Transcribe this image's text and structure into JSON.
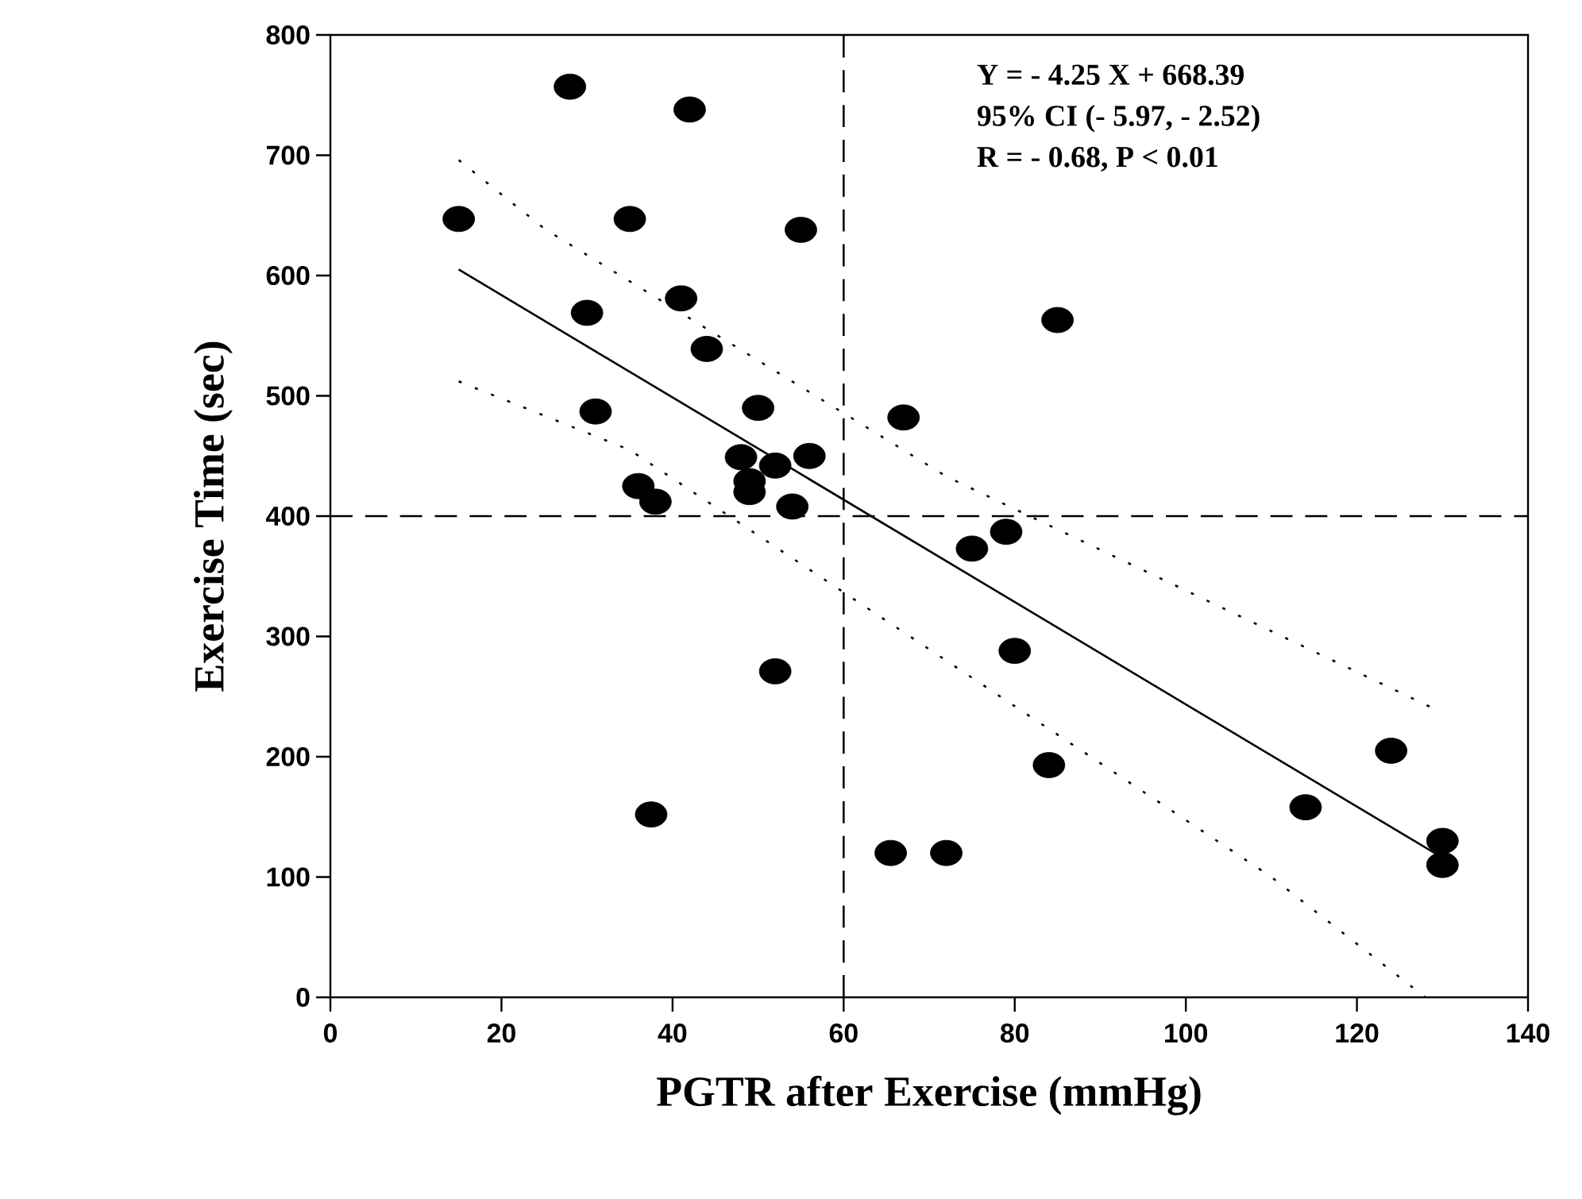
{
  "chart_data": {
    "type": "scatter",
    "xlabel": "PGTR after Exercise (mmHg)",
    "ylabel": "Exercise Time (sec)",
    "xlim": [
      0,
      140
    ],
    "ylim": [
      0,
      800
    ],
    "xticks": [
      0,
      20,
      40,
      60,
      80,
      100,
      120,
      140
    ],
    "yticks": [
      0,
      100,
      200,
      300,
      400,
      500,
      600,
      700,
      800
    ],
    "grid": false,
    "series": [
      {
        "marker": "circle",
        "color": "#000000",
        "x": [
          15,
          28,
          42,
          35,
          55,
          41,
          30,
          44,
          31,
          50,
          67,
          48,
          52,
          56,
          36,
          38,
          49,
          49,
          54,
          37.5,
          52,
          65.5,
          85,
          79,
          75,
          80,
          84,
          72,
          114,
          124,
          130,
          130
        ],
        "values": [
          647,
          757,
          738,
          647,
          638,
          581,
          569,
          539,
          487,
          490,
          482,
          449,
          442,
          450,
          425,
          412,
          429,
          420,
          408,
          152,
          271,
          120,
          563,
          387,
          373,
          288,
          193,
          120,
          158,
          205,
          130,
          110
        ]
      },
      {
        "type": "line",
        "marker": "none",
        "line_style": "solid",
        "color": "#000000",
        "x": [
          15,
          130
        ],
        "values": [
          605,
          116
        ]
      },
      {
        "type": "line",
        "marker": "none",
        "line_style": "dotted",
        "color": "#000000",
        "x": [
          15,
          25,
          72,
          129
        ],
        "values": [
          696,
          639,
          433,
          240
        ]
      },
      {
        "type": "line",
        "marker": "none",
        "line_style": "dotted",
        "color": "#000000",
        "x": [
          15,
          35,
          110,
          128
        ],
        "values": [
          512,
          455,
          100,
          0
        ]
      }
    ],
    "ref_lines": [
      {
        "axis": "x",
        "value": 60,
        "line_style": "dashed",
        "color": "#000000"
      },
      {
        "axis": "y",
        "value": 400,
        "line_style": "dashed",
        "color": "#000000"
      }
    ],
    "annotations": [
      "Y = - 4.25  X + 668.39",
      "95% CI  (- 5.97,  - 2.52)",
      "R = - 0.68, P < 0.01"
    ]
  }
}
